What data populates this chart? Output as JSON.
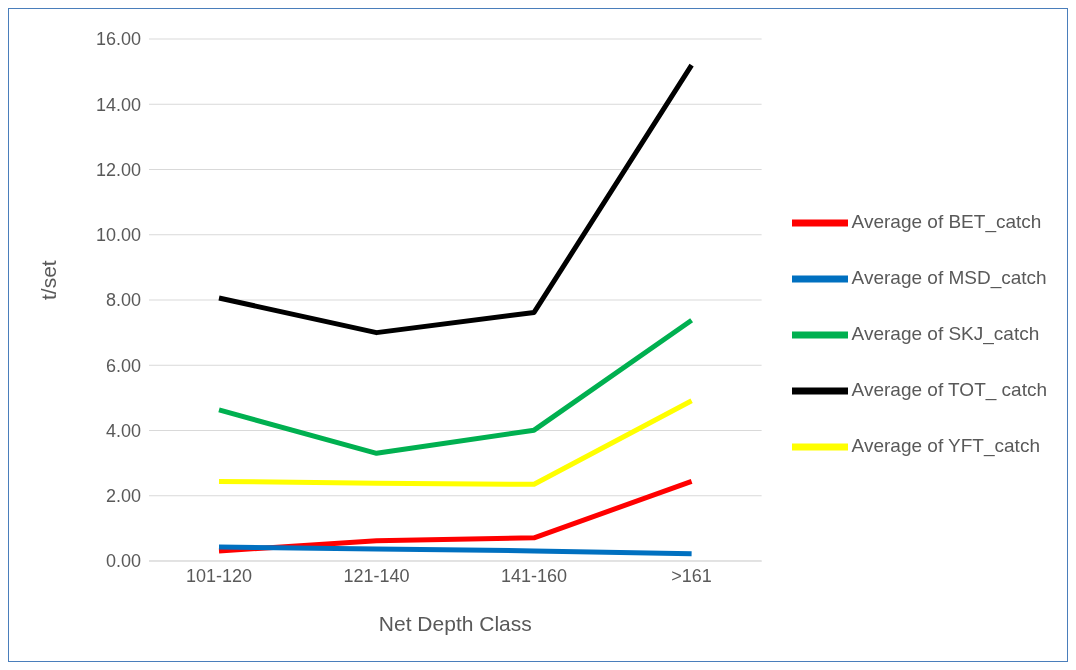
{
  "chart_data": {
    "type": "line",
    "xlabel": "Net Depth Class",
    "ylabel": "t/set",
    "categories": [
      "101-120",
      "121-140",
      "141-160",
      ">161"
    ],
    "series": [
      {
        "name": "Average of TOT_ catch",
        "color": "#000000",
        "values": [
          8.06,
          7.0,
          7.62,
          15.2
        ]
      },
      {
        "name": "Average of SKJ_catch",
        "color": "#00b050",
        "values": [
          4.63,
          3.3,
          4.01,
          7.38
        ]
      },
      {
        "name": "Average of YFT_catch",
        "color": "#ffff00",
        "values": [
          2.44,
          2.38,
          2.35,
          4.91
        ]
      },
      {
        "name": "Average of BET_catch",
        "color": "#ff0000",
        "values": [
          0.31,
          0.62,
          0.71,
          2.44
        ]
      },
      {
        "name": "Average of MSD_catch",
        "color": "#0070c0",
        "values": [
          0.43,
          0.37,
          0.31,
          0.22
        ]
      }
    ],
    "ylim": [
      0,
      16
    ],
    "yticks": [
      {
        "value": 0,
        "label": "0.00"
      },
      {
        "value": 2,
        "label": "2.00"
      },
      {
        "value": 4,
        "label": "4.00"
      },
      {
        "value": 6,
        "label": "6.00"
      },
      {
        "value": 8,
        "label": "8.00"
      },
      {
        "value": 10,
        "label": "10.00"
      },
      {
        "value": 12,
        "label": "12.00"
      },
      {
        "value": 14,
        "label": "14.00"
      },
      {
        "value": 16,
        "label": "16.00"
      }
    ],
    "grid": "y",
    "legend": "right",
    "marker": "none",
    "line_style": "solid"
  }
}
